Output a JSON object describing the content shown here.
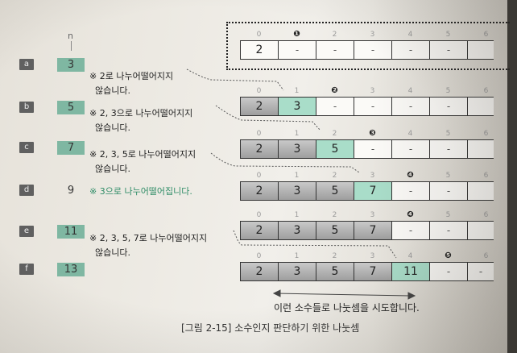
{
  "n_header": "n",
  "rows": [
    {
      "id": "a",
      "badge": "a",
      "n": "3",
      "n_green": true,
      "note_lines": [
        "※ 2로 나누어떨어지지",
        "않습니다."
      ],
      "note_green": false
    },
    {
      "id": "b",
      "badge": "b",
      "n": "5",
      "n_green": true,
      "note_lines": [
        "※ 2, 3으로 나누어떨어지지",
        "않습니다."
      ],
      "note_green": false
    },
    {
      "id": "c",
      "badge": "c",
      "n": "7",
      "n_green": true,
      "note_lines": [
        "※ 2, 3, 5로 나누어떨어지지",
        "않습니다."
      ],
      "note_green": false
    },
    {
      "id": "d",
      "badge": "d",
      "n": "9",
      "n_green": false,
      "note_lines": [
        "※ 3으로 나누어떨어집니다."
      ],
      "note_green": true
    },
    {
      "id": "e",
      "badge": "e",
      "n": "11",
      "n_green": true,
      "note_lines": [
        "※ 2, 3, 5, 7로 나누어떨어지지",
        "않습니다."
      ],
      "note_green": false
    },
    {
      "id": "f",
      "badge": "f",
      "n": "13",
      "n_green": true,
      "note_lines": [],
      "note_green": false
    }
  ],
  "arrays": [
    {
      "indices": [
        "0",
        "❶",
        "2",
        "3",
        "4",
        "5",
        "6"
      ],
      "cells": [
        "2",
        "-",
        "-",
        "-",
        "-",
        "-",
        ""
      ],
      "states": [
        "plain",
        "empty",
        "empty",
        "empty",
        "empty",
        "empty",
        "empty"
      ]
    },
    {
      "indices": [
        "0",
        "1",
        "❷",
        "3",
        "4",
        "5",
        "6"
      ],
      "cells": [
        "2",
        "3",
        "-",
        "-",
        "-",
        "-",
        ""
      ],
      "states": [
        "dark",
        "green",
        "empty",
        "empty",
        "empty",
        "empty",
        "empty"
      ]
    },
    {
      "indices": [
        "0",
        "1",
        "2",
        "❸",
        "4",
        "5",
        "6"
      ],
      "cells": [
        "2",
        "3",
        "5",
        "-",
        "-",
        "-",
        ""
      ],
      "states": [
        "dark",
        "dark",
        "green",
        "empty",
        "empty",
        "empty",
        "empty"
      ]
    },
    {
      "indices": [
        "0",
        "1",
        "2",
        "3",
        "❹",
        "5",
        "6"
      ],
      "cells": [
        "2",
        "3",
        "5",
        "7",
        "-",
        "-",
        ""
      ],
      "states": [
        "dark",
        "dark",
        "dark",
        "green",
        "empty",
        "empty",
        "empty"
      ]
    },
    {
      "indices": [
        "0",
        "1",
        "2",
        "3",
        "❹",
        "5",
        "6"
      ],
      "cells": [
        "2",
        "3",
        "5",
        "7",
        "-",
        "-",
        ""
      ],
      "states": [
        "dark",
        "dark",
        "dark",
        "dark",
        "empty",
        "empty",
        "empty"
      ]
    },
    {
      "indices": [
        "0",
        "1",
        "2",
        "3",
        "4",
        "❺",
        "6"
      ],
      "cells": [
        "2",
        "3",
        "5",
        "7",
        "11",
        "-",
        "-"
      ],
      "states": [
        "dark",
        "dark",
        "dark",
        "dark",
        "green",
        "empty",
        "empty"
      ]
    }
  ],
  "caption_bottom_note": "이런 소수들로 나눗셈을 시도합니다.",
  "figure_caption": "[그림 2-15] 소수인지 판단하기 위한 나눗셈"
}
